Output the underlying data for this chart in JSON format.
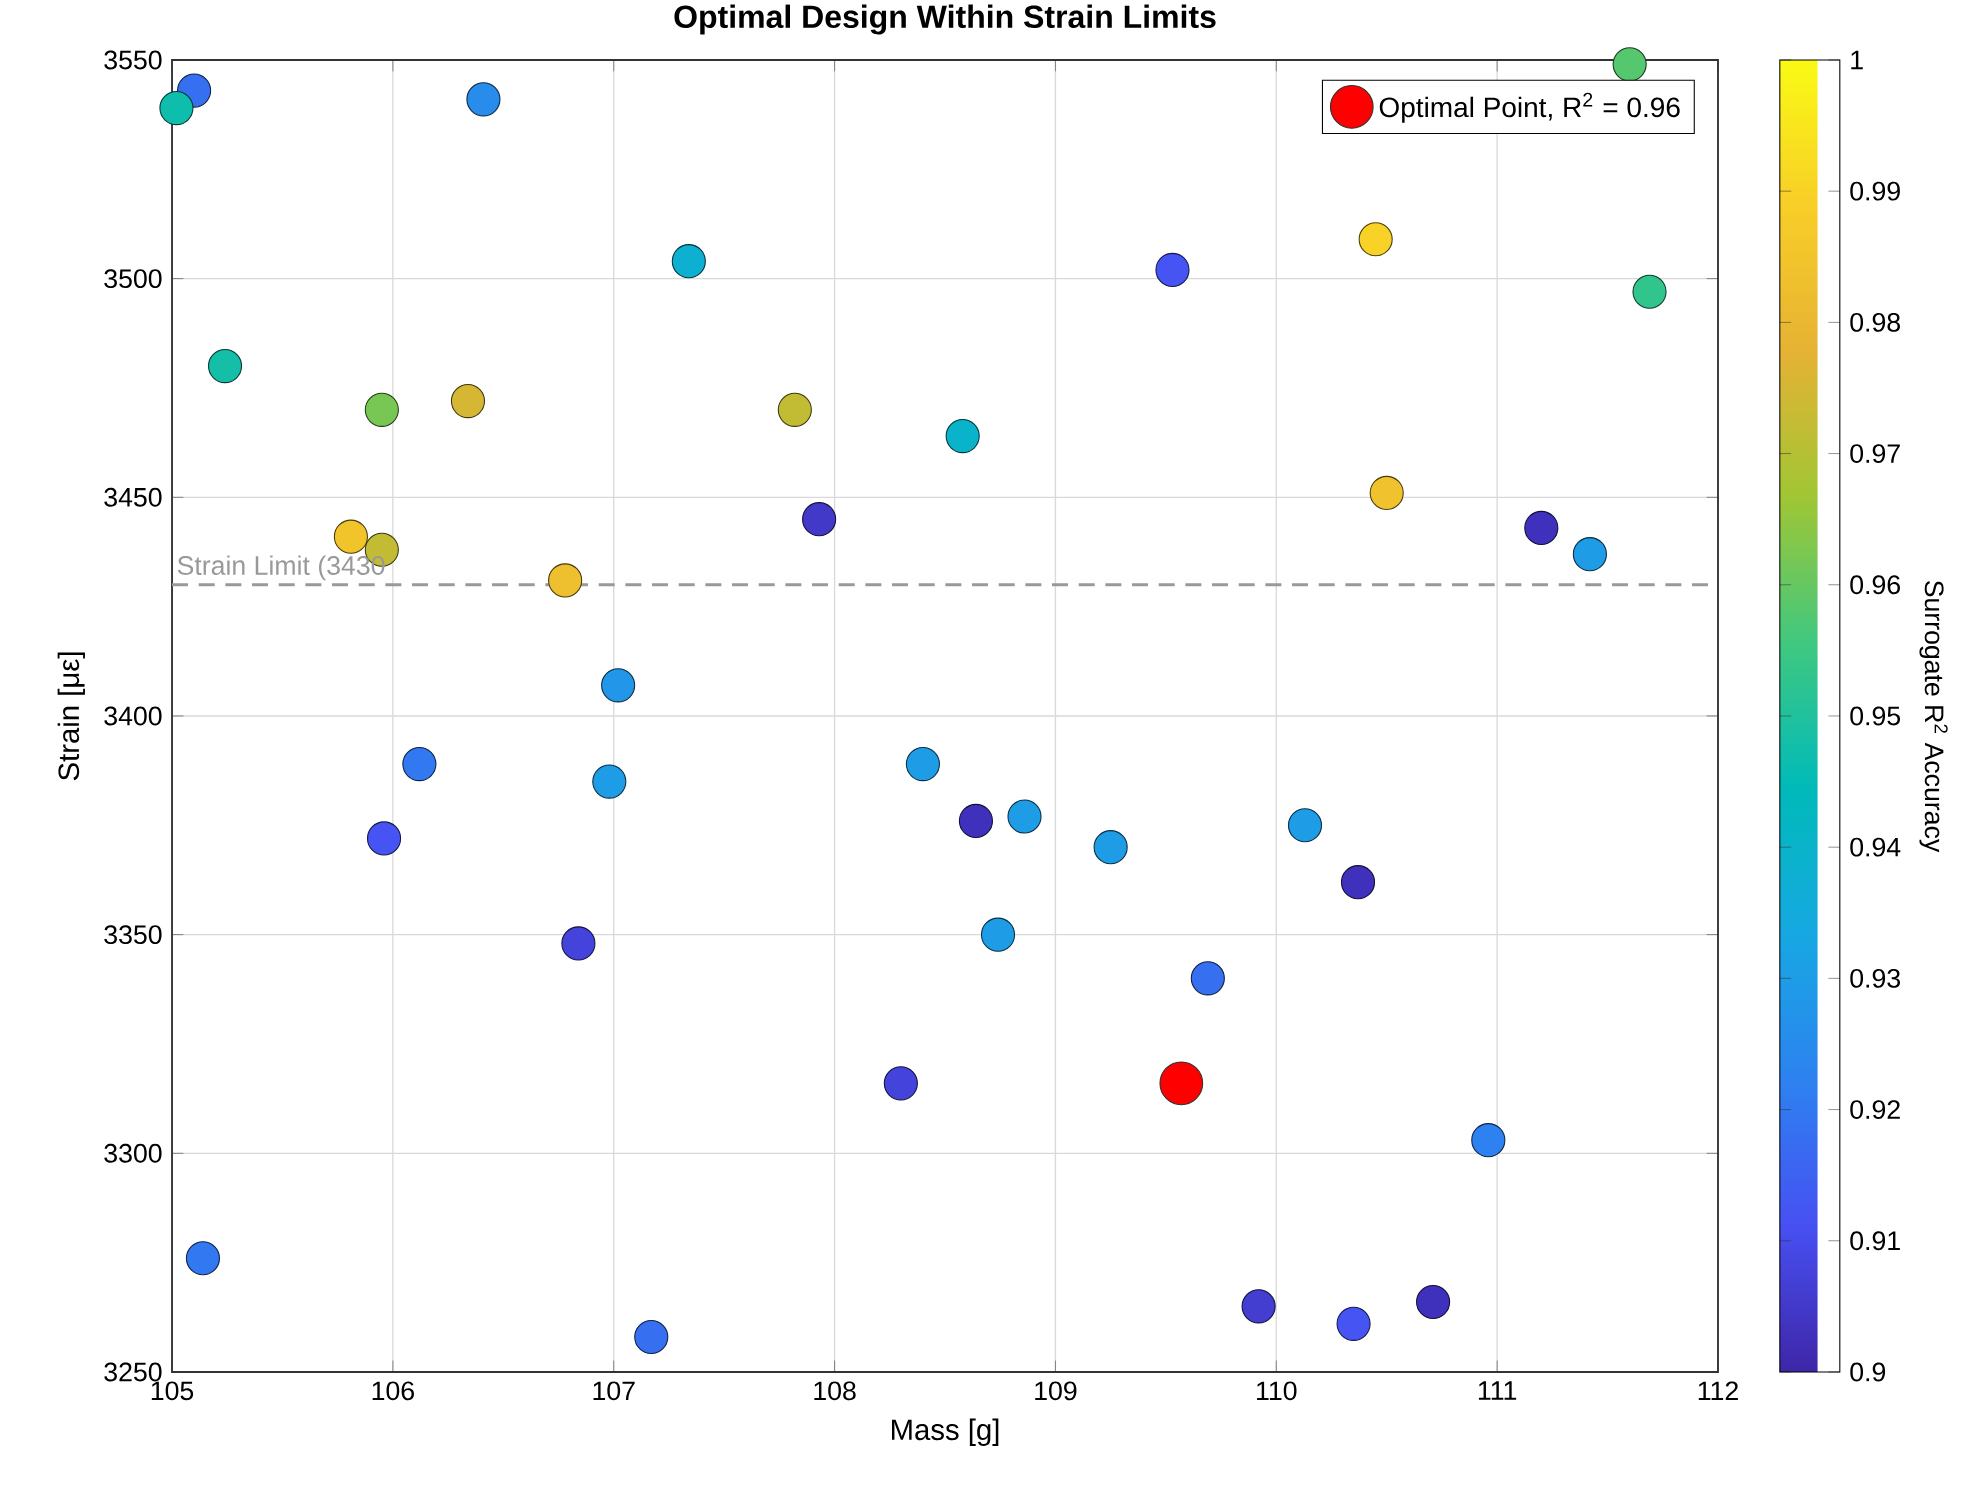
{
  "chart_data": {
    "type": "scatter",
    "title": "Optimal Design Within Strain Limits",
    "xlabel": "Mass [g]",
    "ylabel": "Strain [με]",
    "clabel": "Surrogate R$^{2}$ Accuracy",
    "xlim": [
      105,
      112
    ],
    "xticks": [
      105,
      106,
      107,
      108,
      109,
      110,
      111,
      112
    ],
    "ylim": [
      3250,
      3550
    ],
    "yticks": [
      3250,
      3300,
      3350,
      3400,
      3450,
      3500,
      3550
    ],
    "clim": [
      0.9,
      1
    ],
    "cticks": [
      0.9,
      0.91,
      0.92,
      0.93,
      0.94,
      0.95,
      0.96,
      0.97,
      0.98,
      0.99,
      1
    ],
    "grid": true,
    "legend": "top right",
    "marker": "circle",
    "series": [
      {
        "x": [
          105.1,
          105.02,
          106.41,
          107.34,
          105.24,
          105.95,
          106.34,
          107.82,
          108.58,
          107.93,
          105.81,
          105.95,
          106.78,
          107.02,
          109.53,
          110.45,
          111.6,
          111.69,
          110.5,
          111.2,
          111.42,
          106.12,
          106.98,
          105.96,
          106.84,
          108.4,
          108.3,
          105.14,
          107.17,
          108.64,
          108.86,
          109.25,
          108.74,
          110.13,
          110.37,
          109.69,
          110.96,
          109.92,
          110.35,
          110.71
        ],
        "values": [
          3543,
          3539,
          3541,
          3504,
          3480,
          3470,
          3472,
          3470,
          3464,
          3445,
          3441,
          3438,
          3431,
          3407,
          3502,
          3509,
          3549,
          3497,
          3451,
          3443,
          3437,
          3389,
          3385,
          3372,
          3348,
          3389,
          3316,
          3276,
          3258,
          3376,
          3377,
          3370,
          3350,
          3375,
          3362,
          3340,
          3303,
          3265,
          3261,
          3266
        ],
        "colors": [
          "#376ff1",
          "#0fbdac",
          "#288ced",
          "#0db0d1",
          "#14bea7",
          "#78c754",
          "#d5b734",
          "#c2bc34",
          "#09b3c9",
          "#4239c9",
          "#f2c42c",
          "#c2bc34",
          "#eebf2e",
          "#2296e9",
          "#4554f2",
          "#f8d226",
          "#55c86f",
          "#31c58d",
          "#f0c22d",
          "#4031bc",
          "#1e9de6",
          "#3278f0",
          "#1e9de6",
          "#4554f2",
          "#4444dd",
          "#1e9de6",
          "#4444dd",
          "#3278f0",
          "#376ff1",
          "#4031bc",
          "#1e9de6",
          "#1e9de6",
          "#1e9de6",
          "#1e9de6",
          "#4031bc",
          "#376ff1",
          "#2e81f0",
          "#433dd0",
          "#4554f2",
          "#4031bc"
        ],
        "cvalues": [
          0.918,
          0.947,
          0.925,
          0.938,
          0.948,
          0.962,
          0.975,
          0.972,
          0.94,
          0.905,
          0.985,
          0.972,
          0.983,
          0.928,
          0.912,
          0.99,
          0.958,
          0.953,
          0.984,
          0.903,
          0.93,
          0.92,
          0.93,
          0.912,
          0.908,
          0.93,
          0.908,
          0.92,
          0.918,
          0.903,
          0.93,
          0.93,
          0.93,
          0.93,
          0.903,
          0.918,
          0.922,
          0.906,
          0.912,
          0.903
        ]
      },
      {
        "name": "Optimal Point, R$^{2}$ = 0.96",
        "color": "#ff0000",
        "x": [
          109.57
        ],
        "values": [
          3316
        ]
      }
    ],
    "ref_lines": [
      {
        "axis": "y",
        "value": 3430,
        "label": "Strain Limit (3430",
        "color": "#999999",
        "line_style": "dashed"
      }
    ]
  }
}
